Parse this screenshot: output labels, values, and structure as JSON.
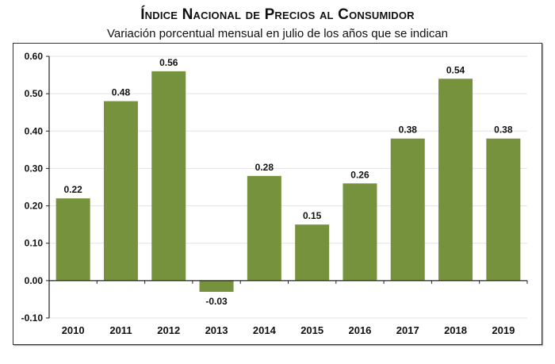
{
  "chart_data": {
    "type": "bar",
    "title": "Índice Nacional de Precios al Consumidor",
    "subtitle": "Variación porcentual mensual en julio de los años que se indican",
    "xlabel": "",
    "ylabel": "",
    "categories": [
      "2010",
      "2011",
      "2012",
      "2013",
      "2014",
      "2015",
      "2016",
      "2017",
      "2018",
      "2019"
    ],
    "values": [
      0.22,
      0.48,
      0.56,
      -0.03,
      0.28,
      0.15,
      0.26,
      0.38,
      0.54,
      0.38
    ],
    "value_labels": [
      "0.22",
      "0.48",
      "0.56",
      "-0.03",
      "0.28",
      "0.15",
      "0.26",
      "0.38",
      "0.54",
      "0.38"
    ],
    "ylim": [
      -0.1,
      0.6
    ],
    "yticks": [
      -0.1,
      0.0,
      0.1,
      0.2,
      0.3,
      0.4,
      0.5,
      0.6
    ],
    "ytick_labels": [
      "-0.10",
      "0.00",
      "0.10",
      "0.20",
      "0.30",
      "0.40",
      "0.50",
      "0.60"
    ],
    "grid": true,
    "legend": "none",
    "bar_color": "#76923c"
  }
}
